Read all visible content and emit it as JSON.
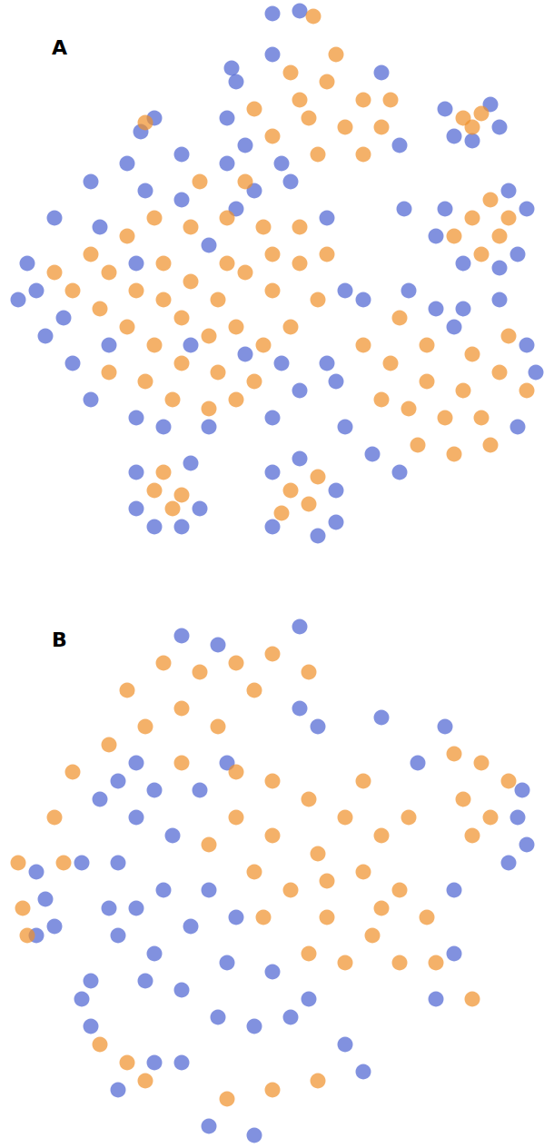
{
  "chart_data": [
    {
      "type": "scatter",
      "title": "A",
      "xlim": [
        0,
        610
      ],
      "ylim": [
        0,
        620
      ],
      "tick_labels": false,
      "series": [
        {
          "color": "#4c63d2",
          "values": [
            [
              100,
              200
            ],
            [
              140,
              180
            ],
            [
              200,
              170
            ],
            [
              250,
              180
            ],
            [
              280,
              210
            ],
            [
              60,
              240
            ],
            [
              40,
              320
            ],
            [
              30,
              290
            ],
            [
              50,
              370
            ],
            [
              80,
              400
            ],
            [
              100,
              440
            ],
            [
              150,
              460
            ],
            [
              320,
              200
            ],
            [
              360,
              240
            ],
            [
              380,
              320
            ],
            [
              360,
              400
            ],
            [
              330,
              430
            ],
            [
              300,
              460
            ],
            [
              230,
              470
            ],
            [
              200,
              220
            ],
            [
              160,
              210
            ],
            [
              110,
              250
            ],
            [
              70,
              350
            ],
            [
              260,
              230
            ],
            [
              230,
              270
            ],
            [
              150,
              290
            ],
            [
              120,
              380
            ],
            [
              270,
              390
            ],
            [
              310,
              400
            ],
            [
              210,
              380
            ],
            [
              180,
              470
            ],
            [
              20,
              330
            ],
            [
              260,
              90
            ],
            [
              270,
              160
            ],
            [
              300,
              60
            ],
            [
              440,
              160
            ],
            [
              250,
              130
            ],
            [
              420,
              80
            ],
            [
              310,
              180
            ],
            [
              490,
              120
            ],
            [
              550,
              140
            ],
            [
              500,
              150
            ],
            [
              540,
              115
            ],
            [
              520,
              155
            ],
            [
              490,
              230
            ],
            [
              580,
              230
            ],
            [
              570,
              280
            ],
            [
              510,
              290
            ],
            [
              550,
              295
            ],
            [
              480,
              260
            ],
            [
              560,
              210
            ],
            [
              400,
              330
            ],
            [
              450,
              320
            ],
            [
              510,
              340
            ],
            [
              550,
              330
            ],
            [
              580,
              380
            ],
            [
              590,
              410
            ],
            [
              370,
              420
            ],
            [
              380,
              470
            ],
            [
              410,
              500
            ],
            [
              440,
              520
            ],
            [
              570,
              470
            ],
            [
              500,
              360
            ],
            [
              480,
              340
            ],
            [
              150,
              520
            ],
            [
              150,
              560
            ],
            [
              210,
              510
            ],
            [
              220,
              560
            ],
            [
              170,
              580
            ],
            [
              200,
              580
            ],
            [
              300,
              520
            ],
            [
              370,
              540
            ],
            [
              300,
              580
            ],
            [
              350,
              590
            ],
            [
              330,
              505
            ],
            [
              370,
              575
            ],
            [
              170,
              130
            ],
            [
              155,
              145
            ],
            [
              300,
              15
            ],
            [
              330,
              12
            ],
            [
              255,
              75
            ],
            [
              445,
              230
            ]
          ]
        },
        {
          "color": "#f0902a",
          "values": [
            [
              120,
              300
            ],
            [
              150,
              320
            ],
            [
              180,
              290
            ],
            [
              210,
              310
            ],
            [
              240,
              330
            ],
            [
              270,
              300
            ],
            [
              300,
              320
            ],
            [
              330,
              290
            ],
            [
              200,
              350
            ],
            [
              230,
              370
            ],
            [
              260,
              360
            ],
            [
              290,
              380
            ],
            [
              170,
              380
            ],
            [
              140,
              360
            ],
            [
              110,
              340
            ],
            [
              200,
              400
            ],
            [
              240,
              410
            ],
            [
              280,
              420
            ],
            [
              320,
              360
            ],
            [
              350,
              330
            ],
            [
              330,
              250
            ],
            [
              290,
              250
            ],
            [
              250,
              240
            ],
            [
              210,
              250
            ],
            [
              170,
              240
            ],
            [
              140,
              260
            ],
            [
              100,
              280
            ],
            [
              80,
              320
            ],
            [
              60,
              300
            ],
            [
              190,
              440
            ],
            [
              230,
              450
            ],
            [
              260,
              440
            ],
            [
              160,
              420
            ],
            [
              120,
              410
            ],
            [
              300,
              280
            ],
            [
              360,
              280
            ],
            [
              220,
              200
            ],
            [
              270,
              200
            ],
            [
              180,
              330
            ],
            [
              250,
              290
            ],
            [
              320,
              80
            ],
            [
              360,
              90
            ],
            [
              400,
              110
            ],
            [
              340,
              130
            ],
            [
              380,
              140
            ],
            [
              420,
              140
            ],
            [
              300,
              150
            ],
            [
              350,
              170
            ],
            [
              400,
              170
            ],
            [
              280,
              120
            ],
            [
              330,
              110
            ],
            [
              430,
              110
            ],
            [
              370,
              60
            ],
            [
              510,
              130
            ],
            [
              530,
              125
            ],
            [
              520,
              140
            ],
            [
              520,
              240
            ],
            [
              550,
              260
            ],
            [
              530,
              280
            ],
            [
              500,
              260
            ],
            [
              560,
              240
            ],
            [
              540,
              220
            ],
            [
              430,
              400
            ],
            [
              470,
              420
            ],
            [
              510,
              430
            ],
            [
              550,
              410
            ],
            [
              450,
              450
            ],
            [
              490,
              460
            ],
            [
              530,
              460
            ],
            [
              420,
              440
            ],
            [
              470,
              380
            ],
            [
              520,
              390
            ],
            [
              560,
              370
            ],
            [
              400,
              380
            ],
            [
              460,
              490
            ],
            [
              500,
              500
            ],
            [
              540,
              490
            ],
            [
              580,
              430
            ],
            [
              440,
              350
            ],
            [
              170,
              540
            ],
            [
              190,
              560
            ],
            [
              180,
              520
            ],
            [
              200,
              545
            ],
            [
              320,
              540
            ],
            [
              340,
              555
            ],
            [
              310,
              565
            ],
            [
              350,
              525
            ],
            [
              160,
              135
            ],
            [
              345,
              18
            ]
          ]
        }
      ]
    },
    {
      "type": "scatter",
      "title": "B",
      "xlim": [
        0,
        610
      ],
      "ylim": [
        640,
        1264
      ],
      "tick_labels": false,
      "series": [
        {
          "color": "#4c63d2",
          "values": [
            [
              130,
              950
            ],
            [
              150,
              1000
            ],
            [
              170,
              1050
            ],
            [
              200,
              1090
            ],
            [
              240,
              1120
            ],
            [
              280,
              1130
            ],
            [
              320,
              1120
            ],
            [
              130,
              1030
            ],
            [
              180,
              980
            ],
            [
              210,
              1020
            ],
            [
              250,
              1060
            ],
            [
              300,
              1070
            ],
            [
              190,
              920
            ],
            [
              150,
              900
            ],
            [
              220,
              870
            ],
            [
              340,
              1100
            ],
            [
              120,
              1000
            ],
            [
              230,
              980
            ],
            [
              160,
              1080
            ],
            [
              260,
              1010
            ],
            [
              130,
              860
            ],
            [
              170,
              870
            ],
            [
              250,
              840
            ],
            [
              330,
              780
            ],
            [
              240,
              710
            ],
            [
              150,
              840
            ],
            [
              110,
              880
            ],
            [
              90,
              950
            ],
            [
              100,
              1080
            ],
            [
              200,
              1170
            ],
            [
              380,
              1150
            ],
            [
              480,
              1100
            ],
            [
              500,
              980
            ],
            [
              460,
              840
            ],
            [
              420,
              790
            ],
            [
              350,
              800
            ],
            [
              200,
              700
            ],
            [
              330,
              690
            ],
            [
              570,
              900
            ],
            [
              580,
              930
            ],
            [
              560,
              950
            ],
            [
              490,
              800
            ],
            [
              575,
              870
            ],
            [
              40,
              960
            ],
            [
              50,
              990
            ],
            [
              60,
              1020
            ],
            [
              40,
              1030
            ],
            [
              100,
              1130
            ],
            [
              170,
              1170
            ],
            [
              130,
              1200
            ],
            [
              280,
              1250
            ],
            [
              400,
              1180
            ],
            [
              230,
              1240
            ],
            [
              500,
              1050
            ],
            [
              90,
              1100
            ]
          ]
        },
        {
          "color": "#f0902a",
          "values": [
            [
              300,
              860
            ],
            [
              340,
              880
            ],
            [
              380,
              900
            ],
            [
              420,
              920
            ],
            [
              350,
              940
            ],
            [
              400,
              960
            ],
            [
              440,
              980
            ],
            [
              300,
              920
            ],
            [
              320,
              980
            ],
            [
              360,
              1010
            ],
            [
              410,
              1030
            ],
            [
              440,
              1060
            ],
            [
              260,
              900
            ],
            [
              280,
              960
            ],
            [
              230,
              930
            ],
            [
              380,
              1060
            ],
            [
              340,
              1050
            ],
            [
              450,
              900
            ],
            [
              470,
              1010
            ],
            [
              400,
              860
            ],
            [
              260,
              850
            ],
            [
              290,
              1010
            ],
            [
              420,
              1000
            ],
            [
              360,
              970
            ],
            [
              140,
              760
            ],
            [
              180,
              730
            ],
            [
              220,
              740
            ],
            [
              260,
              730
            ],
            [
              300,
              720
            ],
            [
              340,
              740
            ],
            [
              160,
              800
            ],
            [
              200,
              780
            ],
            [
              240,
              800
            ],
            [
              120,
              820
            ],
            [
              280,
              760
            ],
            [
              200,
              840
            ],
            [
              500,
              830
            ],
            [
              530,
              840
            ],
            [
              560,
              860
            ],
            [
              510,
              880
            ],
            [
              540,
              900
            ],
            [
              520,
              920
            ],
            [
              20,
              950
            ],
            [
              25,
              1000
            ],
            [
              70,
              950
            ],
            [
              30,
              1030
            ],
            [
              110,
              1150
            ],
            [
              140,
              1170
            ],
            [
              160,
              1190
            ],
            [
              250,
              1210
            ],
            [
              300,
              1200
            ],
            [
              350,
              1190
            ],
            [
              480,
              1060
            ],
            [
              520,
              1100
            ],
            [
              80,
              850
            ],
            [
              60,
              900
            ]
          ]
        }
      ]
    }
  ]
}
